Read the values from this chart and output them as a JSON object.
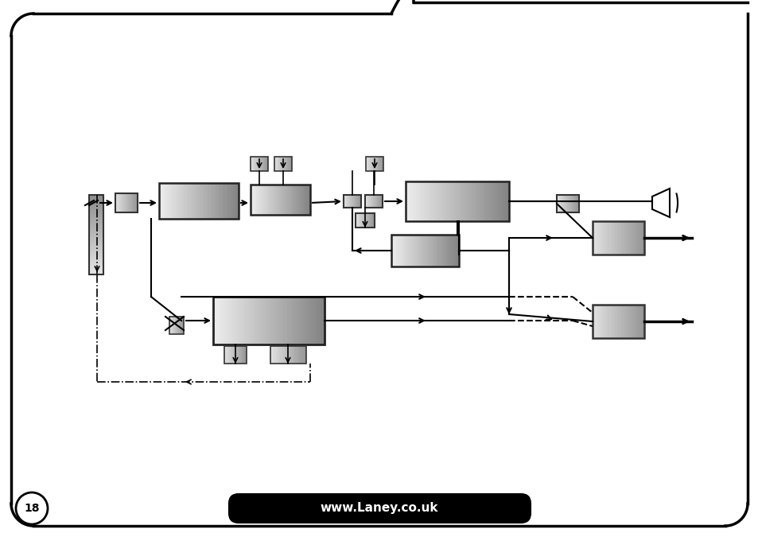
{
  "bg_color": "#ffffff",
  "page_number": "18",
  "website": "www.Laney.co.uk",
  "fig_w": 9.54,
  "fig_h": 6.75,
  "dpi": 100
}
